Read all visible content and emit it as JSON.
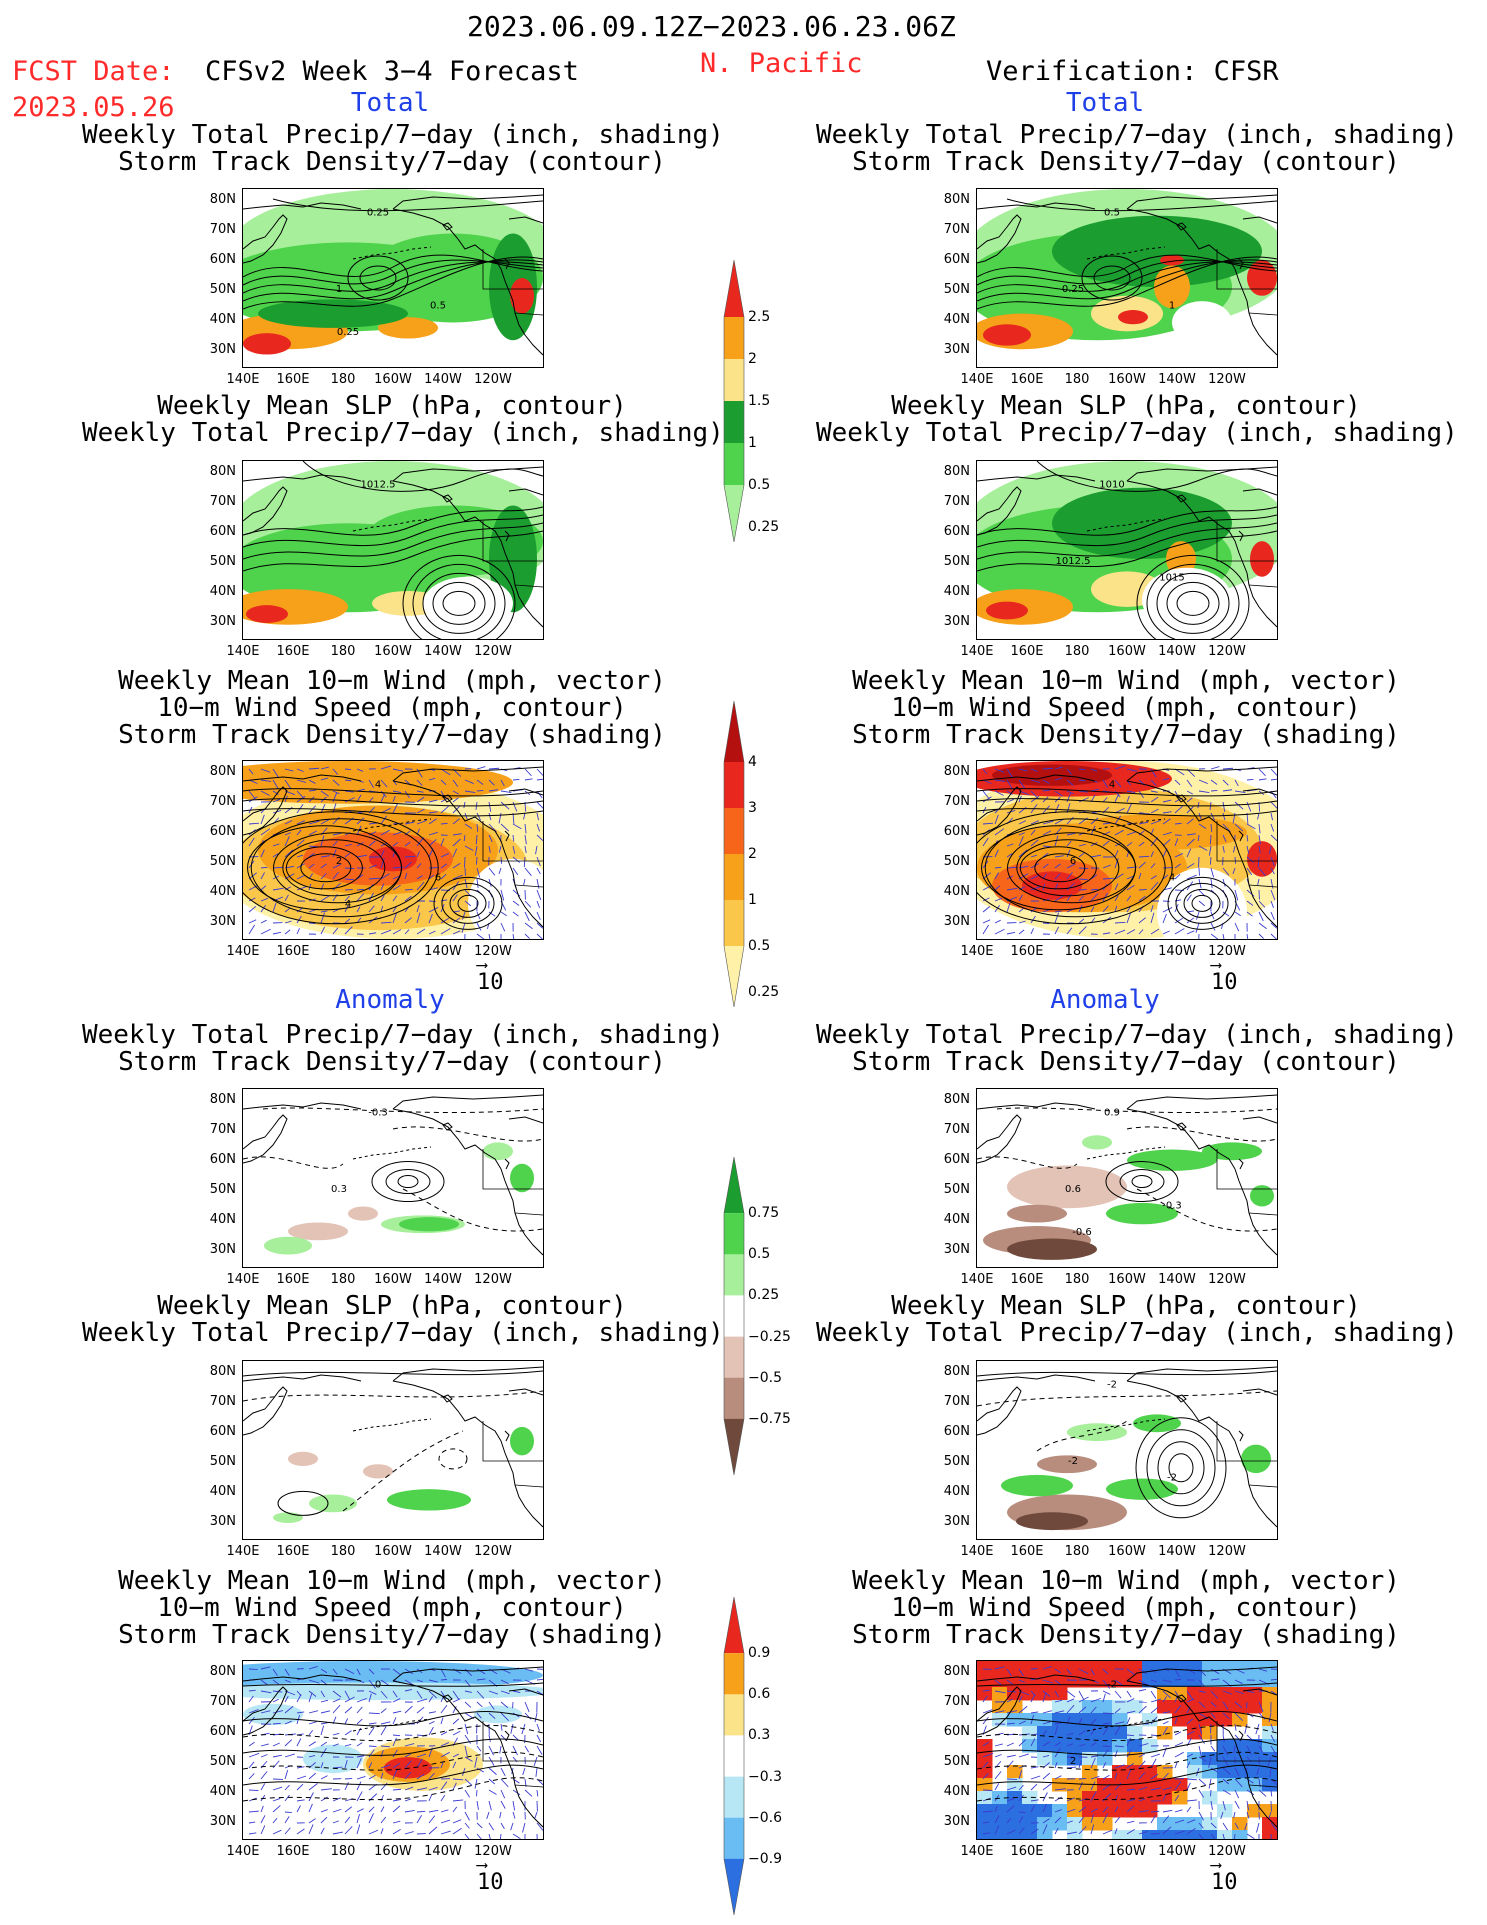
{
  "header": {
    "period": "2023.06.09.12Z−2023.06.23.06Z",
    "fcst_label": "FCST Date:",
    "fcst_date": "2023.05.26",
    "model": "CFSv2 Week 3−4 Forecast",
    "region": "N. Pacific",
    "verification": "Verification: CFSR"
  },
  "sections": {
    "total": "Total",
    "anomaly": "Anomaly"
  },
  "titles": {
    "precip_storm": "Weekly Total Precip/7−day (inch, shading)\nStorm Track Density/7−day (contour)",
    "slp_precip": "Weekly Mean SLP (hPa, contour)\nWeekly Total Precip/7−day (inch, shading)",
    "wind": "Weekly Mean 10−m Wind (mph, vector)\n10−m Wind Speed (mph, contour)\nStorm Track Density/7−day (shading)"
  },
  "axes": {
    "lat_labels": [
      "80N",
      "70N",
      "60N",
      "50N",
      "40N",
      "30N"
    ],
    "lon_labels": [
      "140E",
      "160E",
      "180",
      "160W",
      "140W",
      "120W"
    ]
  },
  "vector_ref": "10",
  "colorbars": {
    "precip_total": {
      "labels": [
        "2.5",
        "2",
        "1.5",
        "1",
        "0.5",
        "0.25"
      ],
      "colors": [
        "#e8281e",
        "#f7a11a",
        "#fbe38a",
        "#1b9e2f",
        "#4fd24c",
        "#a7ef9b"
      ]
    },
    "storm_total": {
      "labels": [
        "4",
        "3",
        "2",
        "1",
        "0.5",
        "0.25"
      ],
      "colors": [
        "#b4100f",
        "#e8281e",
        "#f7651a",
        "#f7a11a",
        "#fbc74a",
        "#fff2a8"
      ]
    },
    "precip_anom": {
      "labels": [
        "0.75",
        "0.5",
        "0.25",
        "−0.25",
        "−0.5",
        "−0.75"
      ],
      "colors": [
        "#1b9e2f",
        "#4fd24c",
        "#a7ef9b",
        "#ffffff",
        "#e2c3b6",
        "#b88d7d",
        "#6f4a3c"
      ]
    },
    "storm_anom": {
      "labels": [
        "0.9",
        "0.6",
        "0.3",
        "−0.3",
        "−0.6",
        "−0.9"
      ],
      "colors": [
        "#e8281e",
        "#f7a11a",
        "#fbe38a",
        "#ffffff",
        "#b7e7f5",
        "#69bdf2",
        "#2c6fe0"
      ]
    }
  },
  "panels": {
    "fc_total_precip": {
      "contour_labels": [
        "0.25",
        "1",
        "0.5",
        "0.25"
      ]
    },
    "fc_total_slp": {
      "contour_labels": [
        "1012.5"
      ]
    },
    "fc_total_wind": {
      "contour_labels": [
        "4",
        "2",
        "6",
        "4"
      ]
    },
    "fc_anom_precip": {
      "contour_labels": [
        "-0.3",
        "0.3"
      ]
    },
    "fc_anom_slp": {
      "contour_labels": []
    },
    "fc_anom_wind": {
      "contour_labels": [
        "0"
      ]
    },
    "vf_total_precip": {
      "contour_labels": [
        "0.5",
        "0.25",
        "1"
      ]
    },
    "vf_total_slp": {
      "contour_labels": [
        "1010",
        "1012.5",
        "1015"
      ]
    },
    "vf_total_wind": {
      "contour_labels": [
        "4",
        "6",
        "4"
      ]
    },
    "vf_anom_precip": {
      "contour_labels": [
        "0.9",
        "0.6",
        "-0.3",
        "-0.6"
      ]
    },
    "vf_anom_slp": {
      "contour_labels": [
        "-2",
        "-2",
        "-2"
      ]
    },
    "vf_anom_wind": {
      "contour_labels": [
        "-2",
        "2"
      ]
    }
  }
}
